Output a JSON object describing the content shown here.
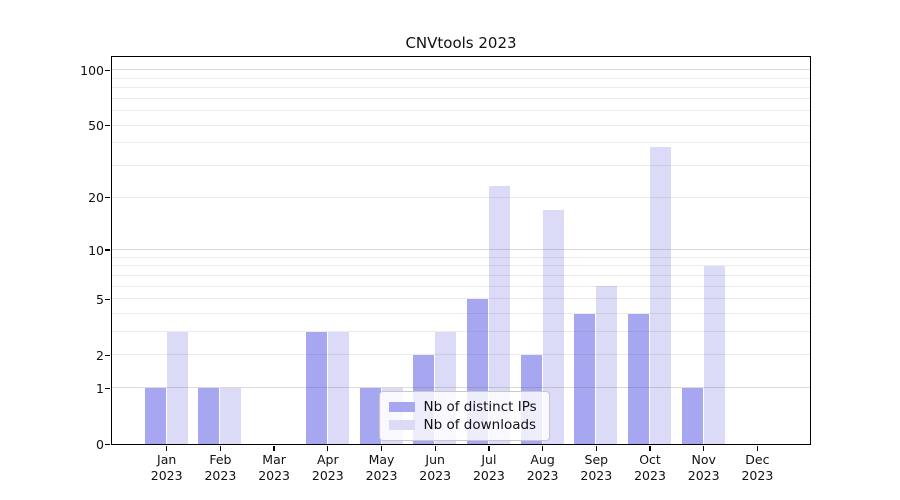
{
  "chart_data": {
    "type": "bar",
    "title": "CNVtools 2023",
    "y_scale": "log10(1+y)",
    "categories": [
      "Jan 2023",
      "Feb 2023",
      "Mar 2023",
      "Apr 2023",
      "May 2023",
      "Jun 2023",
      "Jul 2023",
      "Aug 2023",
      "Sep 2023",
      "Oct 2023",
      "Nov 2023",
      "Dec 2023"
    ],
    "series": [
      {
        "name": "Nb of distinct IPs",
        "color": "#a6a6f1",
        "values": [
          1,
          1,
          0,
          3,
          1,
          2,
          5,
          2,
          4,
          4,
          1,
          0
        ]
      },
      {
        "name": "Nb of downloads",
        "color": "#dbdbf8",
        "values": [
          3,
          1,
          0,
          3,
          1,
          3,
          23,
          17,
          6,
          38,
          8,
          0
        ]
      }
    ],
    "y_ticks": [
      0,
      1,
      2,
      5,
      10,
      20,
      50,
      100
    ],
    "grid_major": [
      1,
      10,
      100
    ],
    "grid_minor": [
      2,
      3,
      4,
      5,
      6,
      7,
      8,
      9,
      20,
      30,
      40,
      50,
      60,
      70,
      80,
      90
    ],
    "ylim": [
      0,
      118
    ],
    "xlabel": "",
    "ylabel": "",
    "grid": "horizontal",
    "legend_position": "lower center",
    "colors": {
      "bar_dark": "#a6a6f1",
      "bar_light": "#dbdbf8",
      "grid_minor": "#eaeaea",
      "grid_major": "#d9d9d9",
      "axis": "#000000",
      "legend_border": "#c8c8c8"
    }
  }
}
